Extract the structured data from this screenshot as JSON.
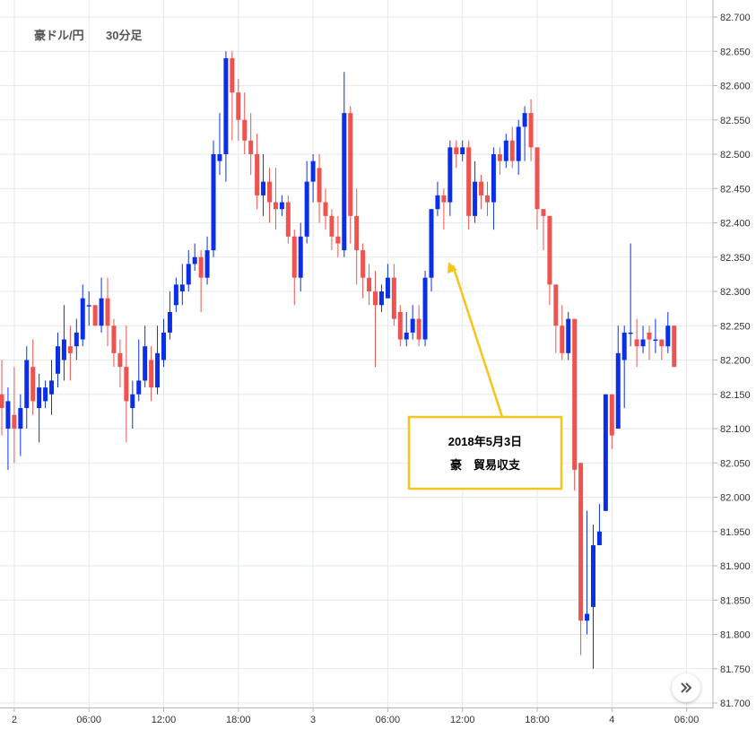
{
  "chart_data": {
    "type": "candlestick",
    "title": "豪ドル/円",
    "interval": "30分足",
    "ylim": [
      81.7,
      82.7
    ],
    "y_ticks": [
      "82.700",
      "82.650",
      "82.600",
      "82.550",
      "82.500",
      "82.450",
      "82.400",
      "82.350",
      "82.300",
      "82.250",
      "82.200",
      "82.150",
      "82.100",
      "82.050",
      "82.000",
      "81.950",
      "81.900",
      "81.850",
      "81.800",
      "81.750",
      "81.700"
    ],
    "x_ticks": [
      "2",
      "06:00",
      "12:00",
      "18:00",
      "3",
      "06:00",
      "12:00",
      "18:00",
      "4",
      "06:00"
    ],
    "annotation": {
      "lines": [
        "2018年5月3日",
        "豪　貿易収支"
      ]
    },
    "candles": [
      [
        82.15,
        82.13,
        82.2,
        82.09
      ],
      [
        82.1,
        82.14,
        82.16,
        82.04
      ],
      [
        82.12,
        82.1,
        82.19,
        82.05
      ],
      [
        82.1,
        82.13,
        82.15,
        82.06
      ],
      [
        82.13,
        82.2,
        82.22,
        82.1
      ],
      [
        82.19,
        82.14,
        82.23,
        82.12
      ],
      [
        82.13,
        82.16,
        82.18,
        82.08
      ],
      [
        82.14,
        82.16,
        82.17,
        82.13
      ],
      [
        82.15,
        82.17,
        82.2,
        82.12
      ],
      [
        82.18,
        82.22,
        82.24,
        82.16
      ],
      [
        82.2,
        82.23,
        82.28,
        82.17
      ],
      [
        82.22,
        82.21,
        82.25,
        82.17
      ],
      [
        82.22,
        82.24,
        82.26,
        82.2
      ],
      [
        82.23,
        82.29,
        82.31,
        82.22
      ],
      [
        82.28,
        82.28,
        82.3,
        82.25
      ],
      [
        82.28,
        82.25,
        82.28,
        82.25
      ],
      [
        82.25,
        82.29,
        82.32,
        82.24
      ],
      [
        82.29,
        82.25,
        82.32,
        82.22
      ],
      [
        82.25,
        82.21,
        82.26,
        82.19
      ],
      [
        82.21,
        82.19,
        82.23,
        82.16
      ],
      [
        82.19,
        82.14,
        82.25,
        82.08
      ],
      [
        82.13,
        82.15,
        82.17,
        82.1
      ],
      [
        82.15,
        82.17,
        82.23,
        82.14
      ],
      [
        82.17,
        82.22,
        82.25,
        82.16
      ],
      [
        82.2,
        82.16,
        82.22,
        82.14
      ],
      [
        82.16,
        82.21,
        82.25,
        82.15
      ],
      [
        82.2,
        82.24,
        82.26,
        82.19
      ],
      [
        82.24,
        82.27,
        82.3,
        82.23
      ],
      [
        82.28,
        82.31,
        82.32,
        82.27
      ],
      [
        82.3,
        82.31,
        82.34,
        82.28
      ],
      [
        82.31,
        82.34,
        82.36,
        82.3
      ],
      [
        82.34,
        82.35,
        82.37,
        82.33
      ],
      [
        82.35,
        82.32,
        82.36,
        82.27
      ],
      [
        82.32,
        82.36,
        82.38,
        82.31
      ],
      [
        82.36,
        82.5,
        82.52,
        82.35
      ],
      [
        82.49,
        82.5,
        82.56,
        82.47
      ],
      [
        82.5,
        82.64,
        82.65,
        82.46
      ],
      [
        82.64,
        82.59,
        82.65,
        82.52
      ],
      [
        82.59,
        82.55,
        82.61,
        82.52
      ],
      [
        82.55,
        82.52,
        82.59,
        82.5
      ],
      [
        82.52,
        82.5,
        82.56,
        82.47
      ],
      [
        82.5,
        82.44,
        82.53,
        82.42
      ],
      [
        82.44,
        82.46,
        82.5,
        82.41
      ],
      [
        82.46,
        82.43,
        82.48,
        82.4
      ],
      [
        82.43,
        82.42,
        82.48,
        82.39
      ],
      [
        82.42,
        82.43,
        82.44,
        82.41
      ],
      [
        82.43,
        82.38,
        82.44,
        82.37
      ],
      [
        82.38,
        82.32,
        82.39,
        82.28
      ],
      [
        82.32,
        82.38,
        82.4,
        82.3
      ],
      [
        82.38,
        82.46,
        82.49,
        82.37
      ],
      [
        82.46,
        82.49,
        82.5,
        82.43
      ],
      [
        82.48,
        82.43,
        82.5,
        82.4
      ],
      [
        82.43,
        82.41,
        82.45,
        82.39
      ],
      [
        82.41,
        82.38,
        82.42,
        82.36
      ],
      [
        82.38,
        82.37,
        82.41,
        82.35
      ],
      [
        82.36,
        82.56,
        82.62,
        82.35
      ],
      [
        82.56,
        82.41,
        82.57,
        82.37
      ],
      [
        82.41,
        82.36,
        82.45,
        82.31
      ],
      [
        82.36,
        82.32,
        82.37,
        82.29
      ],
      [
        82.32,
        82.3,
        82.34,
        82.28
      ],
      [
        82.3,
        82.28,
        82.33,
        82.19
      ],
      [
        82.28,
        82.3,
        82.31,
        82.27
      ],
      [
        82.29,
        82.32,
        82.34,
        82.29
      ],
      [
        82.32,
        82.26,
        82.34,
        82.25
      ],
      [
        82.27,
        82.23,
        82.28,
        82.22
      ],
      [
        82.23,
        82.24,
        82.27,
        82.22
      ],
      [
        82.24,
        82.26,
        82.28,
        82.23
      ],
      [
        82.26,
        82.23,
        82.28,
        82.22
      ],
      [
        82.23,
        82.32,
        82.33,
        82.22
      ],
      [
        82.32,
        82.42,
        82.42,
        82.3
      ],
      [
        82.42,
        82.44,
        82.46,
        82.41
      ],
      [
        82.44,
        82.43,
        82.45,
        82.39
      ],
      [
        82.43,
        82.51,
        82.52,
        82.41
      ],
      [
        82.51,
        82.5,
        82.52,
        82.48
      ],
      [
        82.5,
        82.51,
        82.52,
        82.49
      ],
      [
        82.51,
        82.41,
        82.52,
        82.39
      ],
      [
        82.41,
        82.46,
        82.49,
        82.4
      ],
      [
        82.46,
        82.44,
        82.47,
        82.42
      ],
      [
        82.44,
        82.43,
        82.46,
        82.41
      ],
      [
        82.43,
        82.5,
        82.51,
        82.39
      ],
      [
        82.5,
        82.49,
        82.51,
        82.47
      ],
      [
        82.49,
        82.52,
        82.53,
        82.48
      ],
      [
        82.52,
        82.49,
        82.54,
        82.48
      ],
      [
        82.49,
        82.54,
        82.55,
        82.47
      ],
      [
        82.54,
        82.56,
        82.57,
        82.49
      ],
      [
        82.56,
        82.51,
        82.58,
        82.49
      ],
      [
        82.51,
        82.42,
        82.51,
        82.39
      ],
      [
        82.42,
        82.41,
        82.41,
        82.36
      ],
      [
        82.41,
        82.31,
        82.4,
        82.28
      ],
      [
        82.31,
        82.25,
        82.3,
        82.21
      ],
      [
        82.25,
        82.21,
        82.28,
        82.2
      ],
      [
        82.21,
        82.26,
        82.27,
        82.2
      ],
      [
        82.26,
        82.04,
        82.25,
        82.01
      ],
      [
        82.05,
        81.82,
        82.03,
        81.77
      ],
      [
        81.82,
        81.83,
        81.98,
        81.8
      ],
      [
        81.84,
        81.93,
        81.96,
        81.75
      ],
      [
        81.93,
        81.95,
        81.99,
        81.93
      ],
      [
        81.98,
        82.15,
        82.15,
        81.99
      ],
      [
        82.15,
        82.09,
        82.15,
        82.07
      ],
      [
        82.1,
        82.21,
        82.25,
        82.1
      ],
      [
        82.2,
        82.24,
        82.25,
        82.13
      ],
      [
        82.24,
        82.24,
        82.37,
        82.22
      ],
      [
        82.23,
        82.22,
        82.26,
        82.19
      ],
      [
        82.22,
        82.23,
        82.25,
        82.21
      ],
      [
        82.24,
        82.23,
        82.25,
        82.2
      ],
      [
        82.23,
        82.23,
        82.26,
        82.21
      ],
      [
        82.23,
        82.22,
        82.23,
        82.2
      ],
      [
        82.22,
        82.25,
        82.27,
        82.21
      ],
      [
        82.25,
        82.19,
        82.25,
        82.19
      ]
    ]
  },
  "colors": {
    "up": "#0b2fe8",
    "down": "#ef5350",
    "grid": "#e3e9ef",
    "annotation_border": "#f5c518",
    "arrow": "#f5c518"
  },
  "ui": {
    "scroll_icon": "double-chevron-right-icon"
  }
}
